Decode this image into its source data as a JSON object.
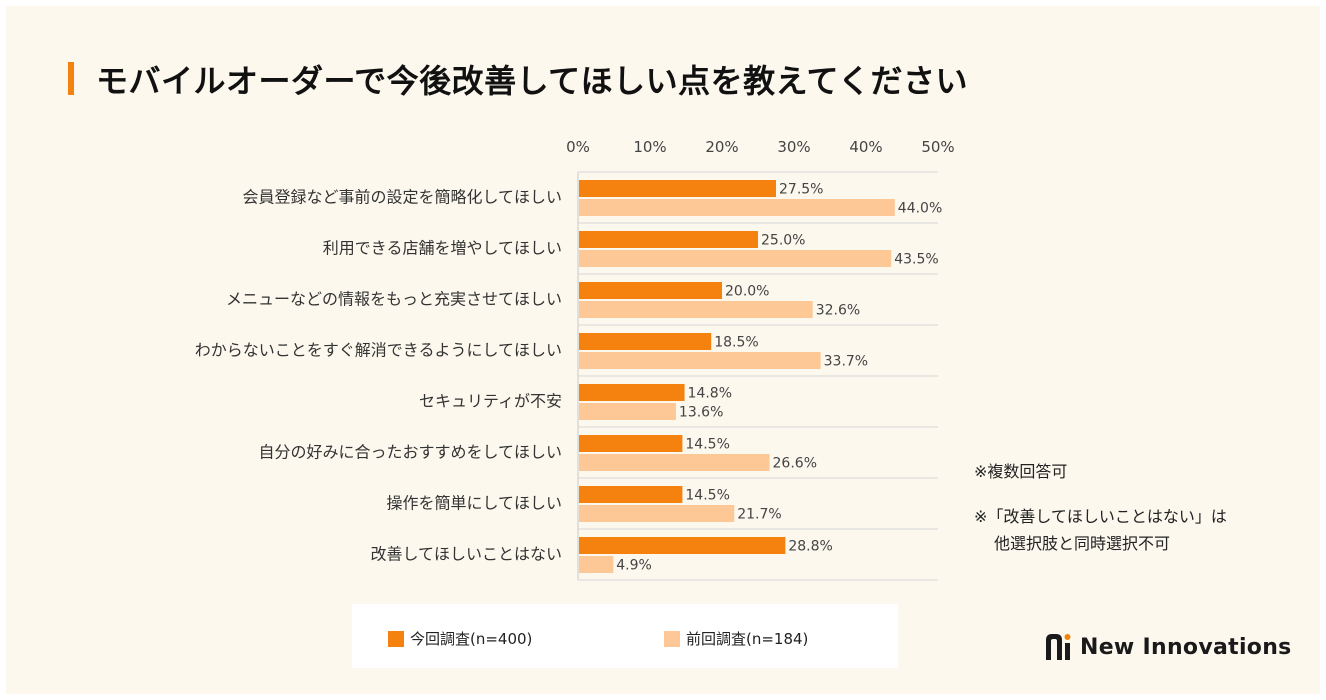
{
  "chart_data": {
    "type": "bar",
    "orientation": "horizontal",
    "title": "モバイルオーダーで今後改善してほしい点を教えてください",
    "categories": [
      "会員登録など事前の設定を簡略化してほしい",
      "利用できる店舗を増やしてほしい",
      "メニューなどの情報をもっと充実させてほしい",
      "わからないことをすぐ解消できるようにしてほしい",
      "セキュリティが不安",
      "自分の好みに合ったおすすめをしてほしい",
      "操作を簡単にしてほしい",
      "改善してほしいことはない"
    ],
    "series": [
      {
        "name": "今回調査(n=400)",
        "color": "#f5820f",
        "values": [
          27.5,
          25.0,
          20.0,
          18.5,
          14.8,
          14.5,
          14.5,
          28.8
        ],
        "labels": [
          "27.5%",
          "25.0%",
          "20.0%",
          "18.5%",
          "14.8%",
          "14.5%",
          "14.5%",
          "28.8%"
        ]
      },
      {
        "name": "前回調査(n=184)",
        "color": "#fdc895",
        "values": [
          44.0,
          43.5,
          32.6,
          33.7,
          13.6,
          26.6,
          21.7,
          4.9
        ],
        "labels": [
          "44.0%",
          "43.5%",
          "32.6%",
          "33.7%",
          "13.6%",
          "26.6%",
          "21.7%",
          "4.9%"
        ]
      }
    ],
    "xlim": [
      0,
      50
    ],
    "ticks": [
      "0%",
      "10%",
      "20%",
      "30%",
      "40%",
      "50%"
    ],
    "tick_values": [
      0,
      10,
      20,
      30,
      40,
      50
    ],
    "gridlines": true,
    "legend_position": "bottom"
  },
  "notes": {
    "multiple": "※複数回答可",
    "exclusive_line1": "※「改善してほしいことはない」は",
    "exclusive_line2": "他選択肢と同時選択不可"
  },
  "brand": {
    "name": "New Innovations",
    "accent": "#f5820f",
    "panel_bg": "#fcf8ee"
  }
}
